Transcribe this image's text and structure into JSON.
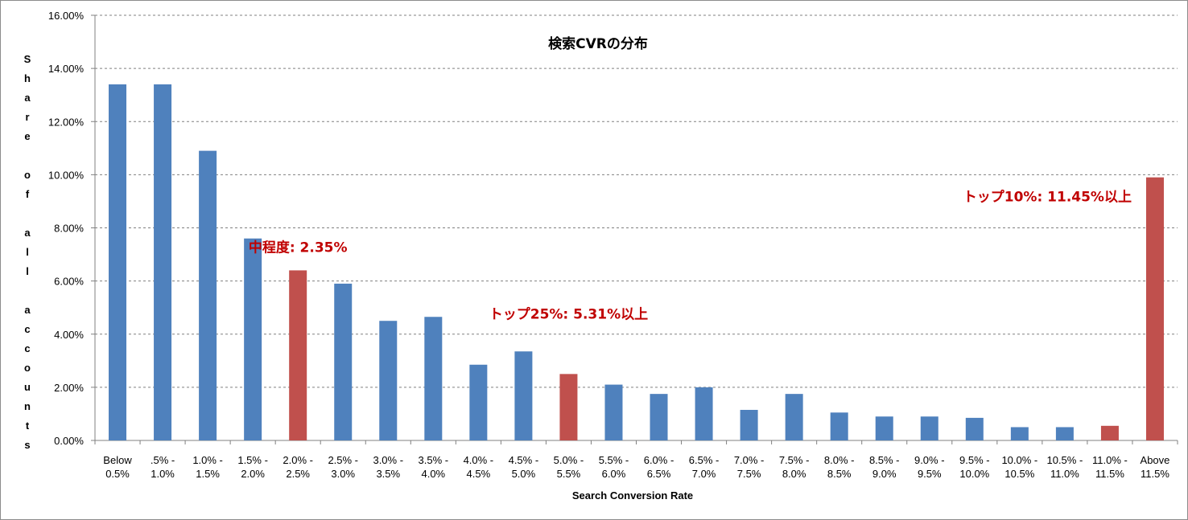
{
  "chart_data": {
    "type": "bar",
    "title": "検索CVRの分布",
    "xlabel": "Search Conversion Rate",
    "ylabel": "Share of all accounts",
    "ylim": [
      0,
      16
    ],
    "y_ticks": [
      "0.00%",
      "2.00%",
      "4.00%",
      "6.00%",
      "8.00%",
      "10.00%",
      "12.00%",
      "14.00%",
      "16.00%"
    ],
    "grid": true,
    "legend": "none",
    "categories": [
      [
        "Below",
        "0.5%"
      ],
      [
        ".5% -",
        "1.0%"
      ],
      [
        "1.0% -",
        "1.5%"
      ],
      [
        "1.5% -",
        "2.0%"
      ],
      [
        "2.0% -",
        "2.5%"
      ],
      [
        "2.5% -",
        "3.0%"
      ],
      [
        "3.0% -",
        "3.5%"
      ],
      [
        "3.5% -",
        "4.0%"
      ],
      [
        "4.0% -",
        "4.5%"
      ],
      [
        "4.5% -",
        "5.0%"
      ],
      [
        "5.0% -",
        "5.5%"
      ],
      [
        "5.5% -",
        "6.0%"
      ],
      [
        "6.0% -",
        "6.5%"
      ],
      [
        "6.5% -",
        "7.0%"
      ],
      [
        "7.0% -",
        "7.5%"
      ],
      [
        "7.5% -",
        "8.0%"
      ],
      [
        "8.0% -",
        "8.5%"
      ],
      [
        "8.5% -",
        "9.0%"
      ],
      [
        "9.0% -",
        "9.5%"
      ],
      [
        "9.5% -",
        "10.0%"
      ],
      [
        "10.0% -",
        "10.5%"
      ],
      [
        "10.5% -",
        "11.0%"
      ],
      [
        "11.0% -",
        "11.5%"
      ],
      [
        "Above",
        "11.5%"
      ]
    ],
    "values": [
      13.4,
      13.4,
      10.9,
      7.6,
      6.4,
      5.9,
      4.5,
      4.65,
      2.85,
      3.35,
      2.5,
      2.1,
      1.75,
      2.0,
      1.15,
      1.75,
      1.05,
      0.9,
      0.9,
      0.85,
      0.5,
      0.5,
      0.55,
      9.9
    ],
    "highlighted": [
      4,
      10,
      22,
      23
    ],
    "colors": {
      "bar": "#4f81bd",
      "highlight": "#c0504d",
      "annotation": "#c00000",
      "grid": "#808080"
    },
    "annotations": [
      {
        "text": "中程度: 2.35%",
        "category_index": 4
      },
      {
        "text": "トップ25%: 5.31%以上",
        "category_index": 10
      },
      {
        "text": "トップ10%: 11.45%以上",
        "category_index": 23
      }
    ]
  }
}
